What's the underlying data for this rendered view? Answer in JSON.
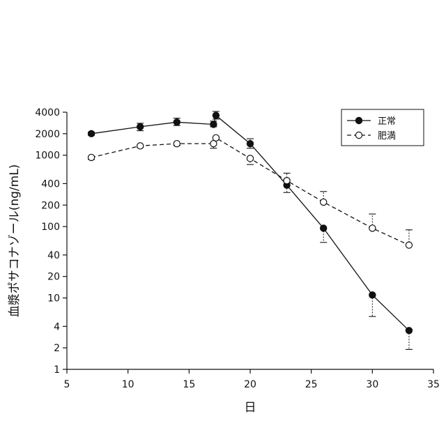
{
  "chart_data": {
    "type": "line",
    "xlabel": "日",
    "ylabel": "血漿ポサコナゾール(ng/mL)",
    "xlim": [
      5,
      35
    ],
    "ylim": [
      1,
      4000
    ],
    "yscale": "log",
    "xticks": [
      5,
      10,
      15,
      20,
      25,
      30,
      35
    ],
    "yticks": [
      1,
      2,
      4,
      10,
      20,
      40,
      100,
      200,
      400,
      1000,
      2000,
      4000
    ],
    "grid": false,
    "legend_position": "top-right",
    "series": [
      {
        "name": "正常",
        "marker": "filled-circle",
        "line": "solid",
        "x": [
          7,
          11,
          14,
          17,
          17.2,
          20,
          23,
          26,
          30,
          33
        ],
        "y": [
          2000,
          2500,
          2900,
          2700,
          3600,
          1450,
          380,
          95,
          11,
          3.5
        ],
        "err_up": [
          2100,
          2800,
          3300,
          3000,
          4100,
          1700,
          460,
          0,
          0,
          0
        ],
        "err_down": [
          1900,
          2200,
          2600,
          2500,
          3200,
          1250,
          300,
          60,
          5.5,
          1.9
        ]
      },
      {
        "name": "肥満",
        "marker": "open-circle",
        "line": "dashed",
        "x": [
          7,
          11,
          14,
          17,
          17.2,
          20,
          23,
          26,
          30,
          33
        ],
        "y": [
          930,
          1350,
          1450,
          1450,
          1750,
          900,
          440,
          220,
          95,
          55
        ],
        "err_up": [
          0,
          0,
          0,
          0,
          0,
          0,
          560,
          310,
          150,
          90
        ],
        "err_down": [
          870,
          1280,
          1360,
          1250,
          0,
          740,
          0,
          0,
          0,
          0
        ]
      }
    ]
  }
}
